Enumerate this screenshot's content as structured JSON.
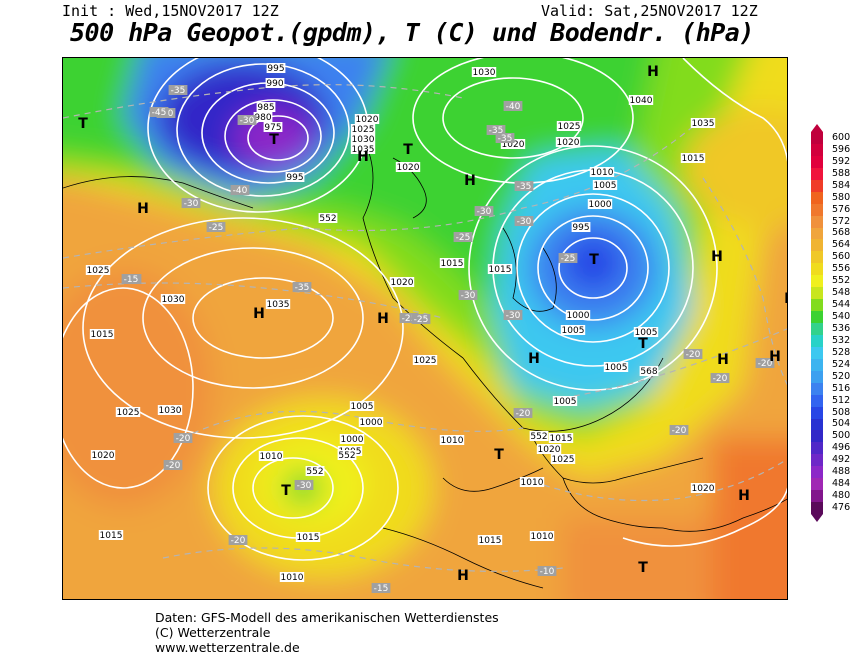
{
  "header": {
    "init": "Init : Wed,15NOV2017 12Z",
    "valid": "Valid: Sat,25NOV2017 12Z",
    "title": "500 hPa Geopot.(gpdm), T (C) und Bodendr. (hPa)"
  },
  "colorbar": {
    "labels": [
      "600",
      "596",
      "592",
      "588",
      "584",
      "580",
      "576",
      "572",
      "568",
      "564",
      "560",
      "556",
      "552",
      "548",
      "544",
      "540",
      "536",
      "532",
      "528",
      "524",
      "520",
      "516",
      "512",
      "508",
      "504",
      "500",
      "496",
      "492",
      "488",
      "484",
      "480",
      "476"
    ],
    "colors": [
      "#c0003c",
      "#d2003c",
      "#e1003c",
      "#f0143c",
      "#f03c28",
      "#f0641e",
      "#f0782d",
      "#f0913c",
      "#f0a53c",
      "#f0b432",
      "#f0c828",
      "#f0dc1e",
      "#f0f01e",
      "#c8e61e",
      "#82dc1e",
      "#3cd232",
      "#32d28c",
      "#28d2c8",
      "#3cc8f0",
      "#3cb4f0",
      "#3ca0f0",
      "#3c82f0",
      "#3264f0",
      "#2846e6",
      "#2832d2",
      "#3228c8",
      "#5028c8",
      "#6e28c8",
      "#8c28c8",
      "#a028b4",
      "#82168c",
      "#5a0a5a"
    ]
  },
  "map": {
    "high_label": "H",
    "low_label": "T",
    "isobar_labels": [
      "995",
      "990",
      "985",
      "980",
      "975",
      "995",
      "1020",
      "1025",
      "1030",
      "1035",
      "1020",
      "1030",
      "1040",
      "1035",
      "1025",
      "1020",
      "1015",
      "1010",
      "1005",
      "1000",
      "995",
      "1000",
      "1005",
      "1005",
      "1015",
      "1020",
      "1025",
      "1030",
      "1025",
      "1015",
      "1035",
      "1030",
      "1025",
      "1020",
      "1015",
      "1010",
      "1005",
      "1000",
      "1000",
      "1005",
      "1010",
      "1015",
      "1020",
      "1025",
      "1005",
      "1010",
      "1015",
      "1020",
      "1010",
      "1015",
      "1005",
      "1010",
      "1015",
      "1020"
    ],
    "temp_labels": [
      "-35",
      "-40",
      "-40",
      "-35",
      "-30",
      "-25",
      "-30",
      "-45",
      "-40",
      "-35",
      "-30",
      "-25",
      "-35",
      "-30",
      "-30",
      "-25",
      "-20",
      "-15",
      "-15",
      "-20",
      "-25",
      "-30",
      "-35",
      "-20",
      "-20",
      "-20",
      "-20",
      "-30",
      "-25",
      "-20",
      "-20",
      "-15",
      "-10"
    ],
    "geopot_labels": [
      "552",
      "552",
      "552",
      "552",
      "568"
    ]
  },
  "footer": {
    "line1": "Daten: GFS-Modell des amerikanischen Wetterdienstes",
    "line2": "(C) Wetterzentrale",
    "line3": "www.wetterzentrale.de"
  }
}
